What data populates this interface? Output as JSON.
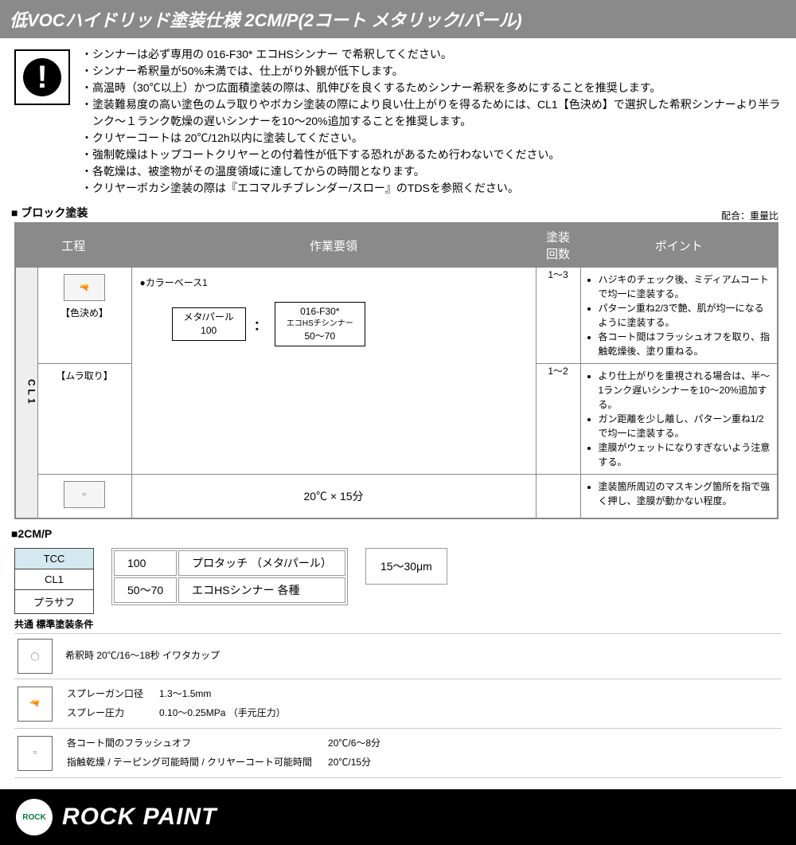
{
  "title": "低VOCハイドリッド塗装仕様  2CM/P(2コート メタリック/パール)",
  "notes": [
    "・シンナーは必ず専用の 016-F30* エコHSシンナー で希釈してください。",
    "・シンナー希釈量が50%未満では、仕上がり外観が低下します。",
    "・高温時（30℃以上）かつ広面積塗装の際は、肌伸びを良くするためシンナー希釈を多めにすることを推奨します。",
    "・塗装難易度の高い塗色のムラ取りやボカシ塗装の際により良い仕上がりを得るためには、CL1【色決め】で選択した希釈シンナーより半ランク～１ランク乾燥の遅いシンナーを10～20%追加することを推奨します。",
    "・クリヤーコートは 20℃/12h以内に塗装してください。",
    "・強制乾燥はトップコートクリヤーとの付着性が低下する恐れがあるため行わないでください。",
    "・各乾燥は、被塗物がその温度領域に達してからの時間となります。",
    "・クリヤーボカシ塗装の際は『エコマルチブレンダー/スロー』のTDSを参照ください。"
  ],
  "section_block": "■ ブロック塗装",
  "ratio_label": "配合：重量比",
  "headers": {
    "process": "工程",
    "method": "作業要領",
    "count": "塗装\n回数",
    "point": "ポイント"
  },
  "cl1_label": "CL1",
  "step1": {
    "label": "【色決め】"
  },
  "step2": {
    "label": "【ムラ取り】"
  },
  "method_title": "●カラーベース1",
  "mix": {
    "left_top": "メタ/パール",
    "left_bottom": "100",
    "colon": "：",
    "right_top": "016-F30*",
    "right_mid": "エコHSチシンナー",
    "right_bottom": "50～70"
  },
  "row1": {
    "count": "1～3",
    "points": [
      "ハジキのチェック後、ミディアムコートで均一に塗装する。",
      "パターン重ね2/3で艶、肌が均一になるように塗装する。",
      "各コート間はフラッシュオフを取り、指触乾燥後、塗り重ねる。"
    ]
  },
  "row2": {
    "count": "1～2",
    "points": [
      "より仕上がりを重視される場合は、半～1ランク遅いシンナーを10～20%追加する。",
      "ガン距離を少し離し、パターン重ね1/2で均一に塗装する。",
      "塗膜がウェットになりすぎないよう注意する。"
    ]
  },
  "row3": {
    "method": "20℃  ×  15分",
    "points": [
      "塗装箇所周辺のマスキング箇所を指で強く押し、塗膜が動かない程度。"
    ]
  },
  "cmp_label": "■2CM/P",
  "cmp_stack": {
    "tcc": "TCC",
    "cl1": "CL1",
    "base": "プラサフ"
  },
  "cmp_table": {
    "r1c1": "100",
    "r1c2": "プロタッチ （メタ/パール）",
    "r2c1": "50～70",
    "r2c2": "エコHSシンナー  各種"
  },
  "cmp_thickness": "15～30μm",
  "cond_title": "共通 標準塗装条件",
  "cond1": "希釈時  20℃/16～18秒 イワタカップ",
  "cond2": {
    "l1a": "スプレーガン口径",
    "l1b": "1.3～1.5mm",
    "l2a": "スプレー圧力",
    "l2b": "0.10～0.25MPa （手元圧力）"
  },
  "cond3": {
    "l1a": "各コート間のフラッシュオフ",
    "l1b": "20℃/6～8分",
    "l2a": "指触乾燥 / テーピング可能時間 / クリヤーコート可能時間",
    "l2b": "20℃/15分"
  },
  "footer": {
    "brand": "ROCK PAINT",
    "logo": "ROCK"
  }
}
